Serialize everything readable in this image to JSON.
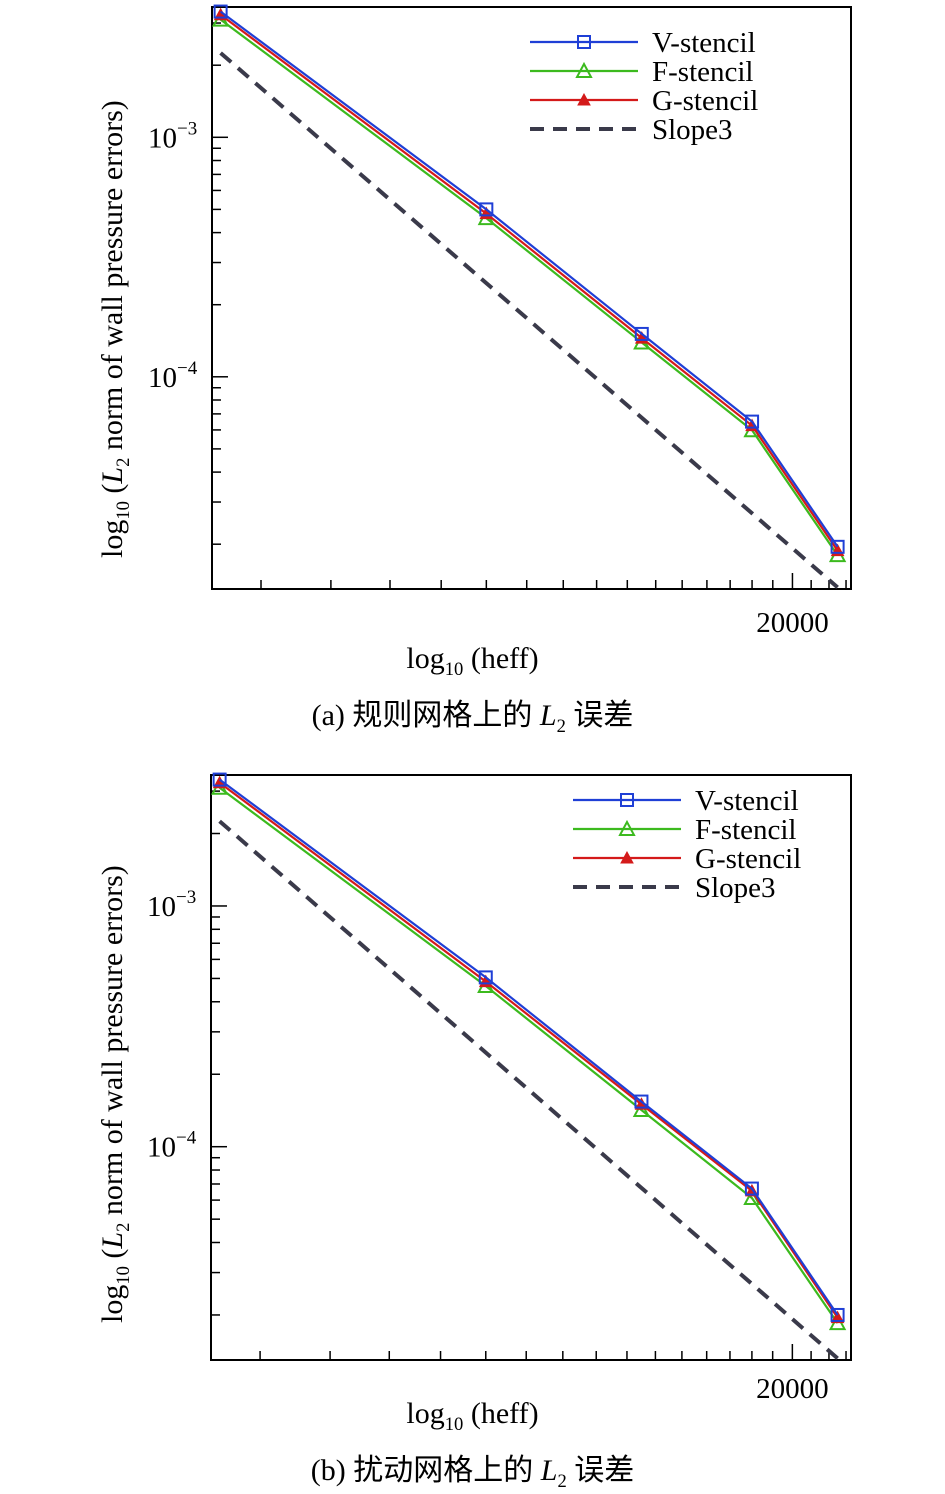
{
  "chart_data": [
    {
      "type": "line",
      "panel_label": "(a) 规则网格上的 L2 误差",
      "caption_prefix": "(a) 规则网格上的 ",
      "caption_l": "L",
      "caption_sub": "2",
      "caption_suffix": " 误差",
      "xlabel_log": "log",
      "xlabel_sub": "10",
      "xlabel_rest": " (heff)",
      "ylabel_log": "log",
      "ylabel_sub": "10",
      "ylabel_paren": " (",
      "ylabel_l": "L",
      "ylabel_lsub": "2",
      "ylabel_rest": " norm of wall pressure errors)",
      "xscale": "log",
      "yscale": "log",
      "xlim": [
        4400,
        23300
      ],
      "ylim": [
        1.3e-05,
        0.0035
      ],
      "x_tick_labels": [
        {
          "value": 20000,
          "label": "20000"
        }
      ],
      "y_tick_labels": [
        {
          "value": 0.001,
          "base": "10",
          "exp": "−3"
        },
        {
          "value": 0.0001,
          "base": "10",
          "exp": "−4"
        }
      ],
      "x_minor_ticks": [
        5000,
        6000,
        7000,
        8000,
        9000,
        10000,
        11000,
        12000,
        13000,
        14000,
        15000,
        16000,
        17000,
        18000,
        19000,
        21000,
        22000,
        23000
      ],
      "legend_position": "top-right",
      "x": [
        4500,
        9000,
        13500,
        18000,
        22500
      ],
      "series": [
        {
          "name": "V-stencil",
          "color": "#1f3fd6",
          "marker": "square",
          "dash": false,
          "values": [
            0.00335,
            0.0005,
            0.000151,
            6.5e-05,
            1.95e-05
          ]
        },
        {
          "name": "F-stencil",
          "color": "#3cba1e",
          "marker": "triangle-open",
          "dash": false,
          "values": [
            0.0031,
            0.00046,
            0.000139,
            5.98e-05,
            1.8e-05
          ]
        },
        {
          "name": "G-stencil",
          "color": "#d41a1a",
          "marker": "triangle-filled",
          "dash": false,
          "values": [
            0.00325,
            0.00048,
            0.000145,
            6.25e-05,
            1.88e-05
          ]
        },
        {
          "name": "Slope3",
          "color": "#3a3a4a",
          "marker": "none",
          "dash": true,
          "x": [
            4500,
            22500
          ],
          "values": [
            0.00225,
            1.32e-05
          ]
        }
      ]
    },
    {
      "type": "line",
      "panel_label": "(b) 扰动网格上的 L2 误差",
      "caption_prefix": "(b) 扰动网格上的 ",
      "caption_l": "L",
      "caption_sub": "2",
      "caption_suffix": " 误差",
      "xlabel_log": "log",
      "xlabel_sub": "10",
      "xlabel_rest": " (heff)",
      "ylabel_log": "log",
      "ylabel_sub": "10",
      "ylabel_paren": " (",
      "ylabel_l": "L",
      "ylabel_lsub": "2",
      "ylabel_rest": " norm of wall pressure errors)",
      "xscale": "log",
      "yscale": "log",
      "xlim": [
        4400,
        23300
      ],
      "ylim": [
        1.3e-05,
        0.0035
      ],
      "x_tick_labels": [
        {
          "value": 20000,
          "label": "20000"
        }
      ],
      "y_tick_labels": [
        {
          "value": 0.001,
          "base": "10",
          "exp": "−3"
        },
        {
          "value": 0.0001,
          "base": "10",
          "exp": "−4"
        }
      ],
      "x_minor_ticks": [
        5000,
        6000,
        7000,
        8000,
        9000,
        10000,
        11000,
        12000,
        13000,
        14000,
        15000,
        16000,
        17000,
        18000,
        19000,
        21000,
        22000,
        23000
      ],
      "legend_position": "top-right",
      "x": [
        4500,
        9000,
        13500,
        18000,
        22500
      ],
      "series": [
        {
          "name": "V-stencil",
          "color": "#1f3fd6",
          "marker": "square",
          "dash": false,
          "values": [
            0.00335,
            0.000505,
            0.000154,
            6.7e-05,
            2e-05
          ]
        },
        {
          "name": "F-stencil",
          "color": "#3cba1e",
          "marker": "triangle-open",
          "dash": false,
          "values": [
            0.0031,
            0.000465,
            0.000142,
            6.12e-05,
            1.85e-05
          ]
        },
        {
          "name": "G-stencil",
          "color": "#d41a1a",
          "marker": "triangle-filled",
          "dash": false,
          "values": [
            0.00325,
            0.000485,
            0.00015,
            6.55e-05,
            1.95e-05
          ]
        },
        {
          "name": "Slope3",
          "color": "#3a3a4a",
          "marker": "none",
          "dash": true,
          "x": [
            4500,
            22500
          ],
          "values": [
            0.00225,
            1.32e-05
          ]
        }
      ]
    }
  ]
}
